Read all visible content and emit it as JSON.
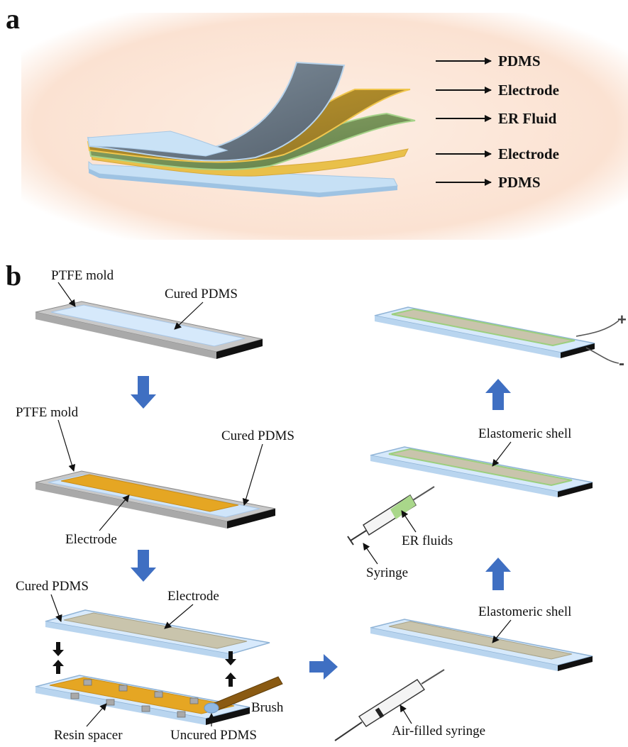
{
  "panel_a": {
    "letter": "a",
    "layers": [
      "PDMS",
      "Electrode",
      "ER Fluid",
      "Electrode",
      "PDMS"
    ]
  },
  "panel_b": {
    "letter": "b",
    "step1": {
      "mold_label": "PTFE mold",
      "pdms_label": "Cured PDMS"
    },
    "step2": {
      "mold_label": "PTFE mold",
      "pdms_label": "Cured PDMS",
      "electrode_label": "Electrode"
    },
    "step3": {
      "pdms_label": "Cured PDMS",
      "electrode_label": "Electrode",
      "spacer_label": "Resin spacer",
      "uncured_label": "Uncured PDMS",
      "brush_label": "Brush"
    },
    "step4": {
      "shell_label": "Elastomeric shell",
      "syringe_label": "Air-filled syringe"
    },
    "step5": {
      "shell_label": "Elastomeric shell",
      "fluid_label": "ER fluids",
      "syringe_label": "Syringe"
    },
    "step6": {
      "plus": "+",
      "minus": "-"
    }
  },
  "colors": {
    "pdms": "#c9e1f6",
    "pdms_edge": "#8fb3d6",
    "electrode_gold": "#e2a82b",
    "electrode_grey": "#c9c4ac",
    "er_fluid": "#9ccf7e",
    "mold": "#c4c4c4",
    "arrow_blue": "#3f6fc2",
    "top_layer_grey": "#6d7b88"
  }
}
